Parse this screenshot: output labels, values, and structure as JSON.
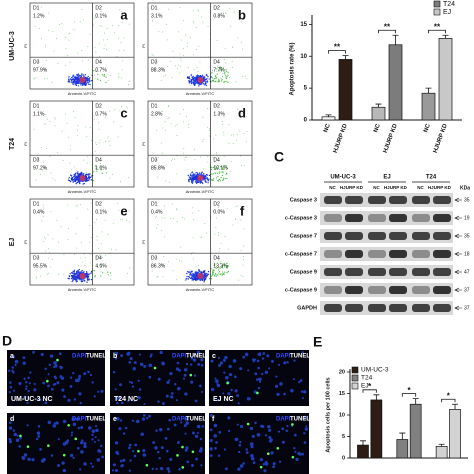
{
  "flow": {
    "x_label": "Annexin-V/FITC",
    "y_label": "PI",
    "rows": [
      {
        "label": "UM-UC-3",
        "plots": [
          {
            "letter": "a",
            "quadrants": [
              {
                "name": "D1",
                "value": "1.2%"
              },
              {
                "name": "D2",
                "value": "0.1%"
              },
              {
                "name": "D3",
                "value": "97.9%"
              },
              {
                "name": "D4",
                "value": "0.7%"
              }
            ]
          },
          {
            "letter": "b",
            "quadrants": [
              {
                "name": "D1",
                "value": "3.1%"
              },
              {
                "name": "D2",
                "value": "0.8%"
              },
              {
                "name": "D3",
                "value": "88.3%"
              },
              {
                "name": "D4",
                "value": "7.7%"
              }
            ]
          }
        ]
      },
      {
        "label": "T24",
        "plots": [
          {
            "letter": "c",
            "quadrants": [
              {
                "name": "D1",
                "value": "1.1%"
              },
              {
                "name": "D2",
                "value": "0.7%"
              },
              {
                "name": "D3",
                "value": "97.2%"
              },
              {
                "name": "D4",
                "value": "1.0%"
              }
            ]
          },
          {
            "letter": "d",
            "quadrants": [
              {
                "name": "D1",
                "value": "2.8%"
              },
              {
                "name": "D2",
                "value": "1.3%"
              },
              {
                "name": "D3",
                "value": "85.8%"
              },
              {
                "name": "D4",
                "value": "10.1%"
              }
            ]
          }
        ]
      },
      {
        "label": "EJ",
        "plots": [
          {
            "letter": "e",
            "quadrants": [
              {
                "name": "D1",
                "value": "0.4%"
              },
              {
                "name": "D2",
                "value": "0.1%"
              },
              {
                "name": "D3",
                "value": "95.5%"
              },
              {
                "name": "D4",
                "value": "4.0%"
              }
            ]
          },
          {
            "letter": "f",
            "quadrants": [
              {
                "name": "D1",
                "value": "0.4%"
              },
              {
                "name": "D2",
                "value": "0.0%"
              },
              {
                "name": "D3",
                "value": "86.3%"
              },
              {
                "name": "D4",
                "value": "13.3%"
              }
            ]
          }
        ]
      }
    ]
  },
  "blot": {
    "label": "C",
    "unit": "KDa",
    "groups": [
      {
        "name": "UM-UC-3",
        "lanes": [
          "NC",
          "HJURP KD"
        ]
      },
      {
        "name": "EJ",
        "lanes": [
          "NC",
          "HJURP KD"
        ]
      },
      {
        "name": "T24",
        "lanes": [
          "NC",
          "HJURP KD"
        ]
      }
    ],
    "rows": [
      {
        "protein": "Caspase 3",
        "kda": "35"
      },
      {
        "protein": "c-Caspase 3",
        "kda": "19"
      },
      {
        "protein": "Caspase 7",
        "kda": "35"
      },
      {
        "protein": "c-Caspase 7",
        "kda": "18"
      },
      {
        "protein": "Caspase 9",
        "kda": "47"
      },
      {
        "protein": "c-Caspase 9",
        "kda": "37"
      },
      {
        "protein": "GAPDH",
        "kda": "37"
      }
    ]
  },
  "tunel": {
    "label": "D",
    "stains": [
      "DAPI",
      "TUNEL"
    ],
    "images": [
      {
        "letter": "a",
        "caption": "UM-UC-3 NC"
      },
      {
        "letter": "b",
        "caption": "T24 NC"
      },
      {
        "letter": "c",
        "caption": "EJ NC"
      },
      {
        "letter": "d"
      },
      {
        "letter": "e"
      },
      {
        "letter": "f"
      }
    ]
  },
  "chart_data": [
    {
      "type": "bar",
      "y_label": "Apoptosis rate (%)",
      "categories": [
        "NC",
        "HJURP KD"
      ],
      "ylim": [
        0,
        16
      ],
      "yticks": [
        0,
        5,
        10,
        15
      ],
      "legend": "upper right",
      "series": [
        {
          "colors": [
            "#f4f4f4",
            "#2e1d14"
          ],
          "values": [
            0.5,
            9.5
          ],
          "errors": [
            0.3,
            0.6
          ],
          "significance": "**"
        },
        {
          "name": "T24",
          "colors": [
            "#b8b8b8",
            "#7c7c7c"
          ],
          "values": [
            2.0,
            11.8
          ],
          "errors": [
            0.5,
            1.5
          ],
          "significance": "**"
        },
        {
          "name": "EJ",
          "colors": [
            "#9a9a9a",
            "#c8c8c8"
          ],
          "values": [
            4.2,
            12.8
          ],
          "errors": [
            0.8,
            0.5
          ],
          "significance": "**"
        }
      ]
    },
    {
      "type": "bar",
      "panel_label": "E",
      "y_label": "Apoptosis cells per 100 cells",
      "ylim": [
        0,
        20
      ],
      "yticks": [
        0,
        5,
        10,
        15,
        20
      ],
      "legend": "upper left",
      "series": [
        {
          "name": "UM-UC-3",
          "color": "#2e1d14",
          "values": [
            3.0,
            13.5
          ],
          "errors": [
            1.0,
            1.2
          ],
          "significance": "*"
        },
        {
          "name": "T24",
          "color": "#808080",
          "values": [
            4.3,
            12.5
          ],
          "errors": [
            1.5,
            1.3
          ],
          "significance": "*"
        },
        {
          "name": "EJ",
          "color": "#d2d2d2",
          "values": [
            2.7,
            11.3
          ],
          "errors": [
            0.5,
            1.2
          ],
          "significance": "*"
        }
      ]
    }
  ]
}
